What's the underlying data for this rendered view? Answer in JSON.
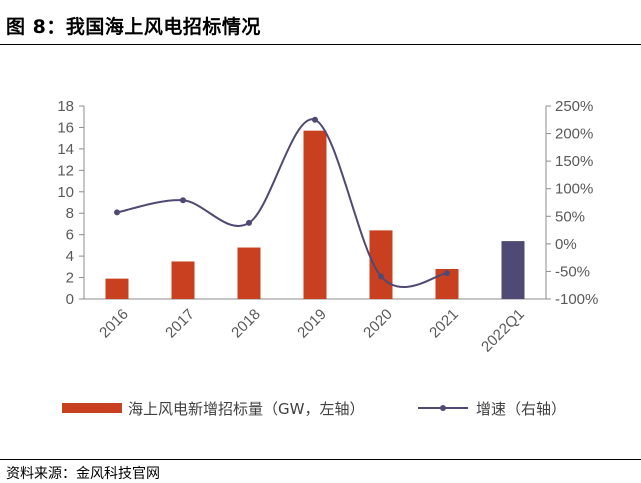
{
  "header": {
    "title": "图 8：我国海上风电招标情况"
  },
  "footer": {
    "source": "资料来源：金风科技官网"
  },
  "colors": {
    "bar": "#C8401F",
    "bar_last": "#4F4A73",
    "line": "#4F4A73",
    "axis": "#8C8C8C"
  },
  "chart_data": {
    "type": "bar",
    "categories": [
      "2016",
      "2017",
      "2018",
      "2019",
      "2020",
      "2021",
      "2022Q1"
    ],
    "series": [
      {
        "name": "海上风电新增招标量（GW，左轴）",
        "axis": "left",
        "type": "bar",
        "values": [
          1.9,
          3.5,
          4.8,
          15.7,
          6.4,
          2.8,
          5.4
        ]
      },
      {
        "name": "增速（右轴）",
        "axis": "right",
        "type": "line",
        "values": [
          57,
          79,
          38,
          225,
          -59,
          -53,
          null
        ]
      }
    ],
    "y_left": {
      "min": 0,
      "max": 18,
      "step": 2,
      "ticks": [
        "0",
        "2",
        "4",
        "6",
        "8",
        "10",
        "12",
        "14",
        "16",
        "18"
      ]
    },
    "y_right": {
      "min": -100,
      "max": 250,
      "step": 50,
      "ticks": [
        "-100%",
        "-50%",
        "0%",
        "50%",
        "100%",
        "150%",
        "200%",
        "250%"
      ]
    },
    "legend_position": "bottom",
    "grid": false
  }
}
